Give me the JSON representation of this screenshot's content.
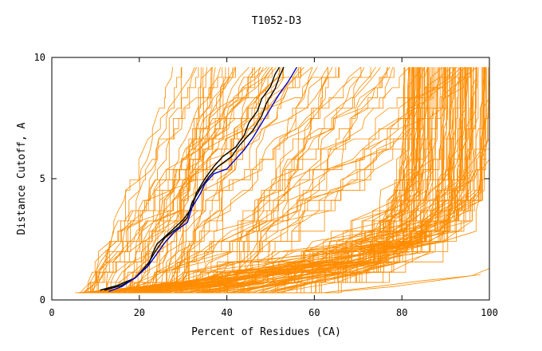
{
  "chart_data": {
    "type": "line",
    "title": "T1052-D3",
    "xlabel": "Percent of Residues (CA)",
    "ylabel": "Distance Cutoff, A",
    "xlim": [
      0,
      100
    ],
    "ylim": [
      0,
      10
    ],
    "xticks": [
      0,
      20,
      40,
      60,
      80,
      100
    ],
    "yticks": [
      0,
      5,
      10
    ],
    "grid": false,
    "colors": {
      "background_series": "#ff8c00",
      "highlight_a": "#000000",
      "highlight_b": "#0000cc"
    },
    "highlight_series": [
      {
        "color": "#000000",
        "points": [
          [
            11,
            0.4
          ],
          [
            15,
            0.6
          ],
          [
            19,
            0.9
          ],
          [
            22,
            1.4
          ],
          [
            23,
            1.9
          ],
          [
            24,
            2.3
          ],
          [
            27,
            2.8
          ],
          [
            30,
            3.3
          ],
          [
            32,
            3.8
          ],
          [
            33,
            4.4
          ],
          [
            35,
            5.0
          ],
          [
            37,
            5.5
          ],
          [
            39,
            5.9
          ],
          [
            42,
            6.3
          ],
          [
            44,
            6.8
          ],
          [
            45,
            7.3
          ],
          [
            47,
            7.8
          ],
          [
            48,
            8.3
          ],
          [
            50,
            8.8
          ],
          [
            51,
            9.3
          ],
          [
            52,
            9.6
          ]
        ]
      },
      {
        "color": "#000000",
        "points": [
          [
            12,
            0.4
          ],
          [
            16,
            0.6
          ],
          [
            19,
            0.9
          ],
          [
            22,
            1.5
          ],
          [
            24,
            2.1
          ],
          [
            26,
            2.6
          ],
          [
            29,
            3.0
          ],
          [
            31,
            3.4
          ],
          [
            32,
            4.0
          ],
          [
            34,
            4.6
          ],
          [
            36,
            5.1
          ],
          [
            38,
            5.5
          ],
          [
            41,
            5.9
          ],
          [
            43,
            6.4
          ],
          [
            46,
            7.0
          ],
          [
            48,
            7.6
          ],
          [
            49,
            8.1
          ],
          [
            51,
            8.7
          ],
          [
            52,
            9.2
          ],
          [
            53,
            9.6
          ]
        ]
      },
      {
        "color": "#0000cc",
        "points": [
          [
            13,
            0.35
          ],
          [
            16,
            0.55
          ],
          [
            19,
            0.9
          ],
          [
            22,
            1.4
          ],
          [
            24,
            1.9
          ],
          [
            26,
            2.4
          ],
          [
            28,
            2.8
          ],
          [
            31,
            3.2
          ],
          [
            32,
            3.8
          ],
          [
            34,
            4.4
          ],
          [
            35,
            4.8
          ],
          [
            37,
            5.2
          ],
          [
            40,
            5.4
          ],
          [
            42,
            5.8
          ],
          [
            44,
            6.2
          ],
          [
            46,
            6.7
          ],
          [
            48,
            7.3
          ],
          [
            50,
            7.9
          ],
          [
            52,
            8.5
          ],
          [
            54,
            9.0
          ],
          [
            55,
            9.3
          ],
          [
            56,
            9.6
          ]
        ]
      }
    ],
    "background_families": {
      "steep": {
        "count": 48,
        "x_start_range": [
          6,
          30
        ],
        "x_end_range": [
          22,
          72
        ]
      },
      "mid": {
        "count": 28,
        "x_start_range": [
          8,
          40
        ],
        "x_end_range": [
          55,
          100
        ]
      },
      "shallow": {
        "count": 115,
        "x_start_range": [
          5,
          52
        ],
        "x_end_range": [
          80,
          100
        ]
      },
      "bottom": [
        {
          "points": [
            [
              62,
              0.3
            ],
            [
              72,
              0.5
            ],
            [
              85,
              0.8
            ],
            [
              96,
              1.0
            ],
            [
              100,
              1.3
            ]
          ]
        },
        {
          "points": [
            [
              66,
              0.35
            ],
            [
              78,
              0.55
            ],
            [
              90,
              0.85
            ],
            [
              98,
              1.05
            ]
          ]
        }
      ]
    }
  }
}
